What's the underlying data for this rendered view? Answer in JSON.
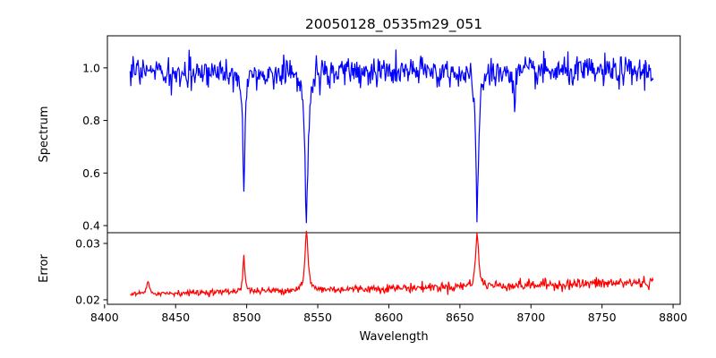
{
  "chart_data": {
    "type": "line",
    "title": "20050128_0535m29_051",
    "xlabel": "Wavelength",
    "xlim": [
      8402,
      8805
    ],
    "xticks": [
      8400,
      8450,
      8500,
      8550,
      8600,
      8650,
      8700,
      8750,
      8800
    ],
    "grid": false,
    "panels": [
      {
        "name": "spectrum-panel",
        "ylabel": "Spectrum",
        "ylim": [
          0.373,
          1.122
        ],
        "yticks": [
          0.4,
          0.6,
          0.8,
          1.0
        ],
        "ytick_labels": [
          "0.4",
          "0.6",
          "0.8",
          "1.0"
        ],
        "color": "#0000ff",
        "baseline": 0.985,
        "noise": 0.028,
        "features": [
          {
            "center": 8498.0,
            "depth": 0.43,
            "width": 0.9
          },
          {
            "center": 8542.1,
            "depth": 0.57,
            "width": 1.3
          },
          {
            "center": 8662.1,
            "depth": 0.53,
            "width": 1.2
          },
          {
            "center": 8688.6,
            "depth": 0.17,
            "width": 0.5
          },
          {
            "center": 8446.5,
            "depth": 0.07,
            "width": 1.0
          },
          {
            "center": 8514.0,
            "depth": 0.06,
            "width": 1.0
          }
        ]
      },
      {
        "name": "error-panel",
        "ylabel": "Error",
        "ylim": [
          0.0192,
          0.0319
        ],
        "yticks": [
          0.02,
          0.03
        ],
        "ytick_labels": [
          "0.02",
          "0.03"
        ],
        "color": "#ff0000",
        "baseline_start": 0.021,
        "baseline_end": 0.0231,
        "noise": 0.00035,
        "features": [
          {
            "center": 8498.0,
            "height": 0.0065,
            "width": 0.8
          },
          {
            "center": 8542.1,
            "height": 0.0105,
            "width": 1.2
          },
          {
            "center": 8662.1,
            "height": 0.0095,
            "width": 1.2
          },
          {
            "center": 8430.5,
            "height": 0.002,
            "width": 1.0
          }
        ]
      }
    ],
    "series": [
      {
        "panel": "spectrum-panel",
        "x_start": 8418,
        "x_end": 8786,
        "x_step": 0.5
      },
      {
        "panel": "error-panel",
        "x_start": 8418,
        "x_end": 8786,
        "x_step": 0.5
      }
    ]
  }
}
